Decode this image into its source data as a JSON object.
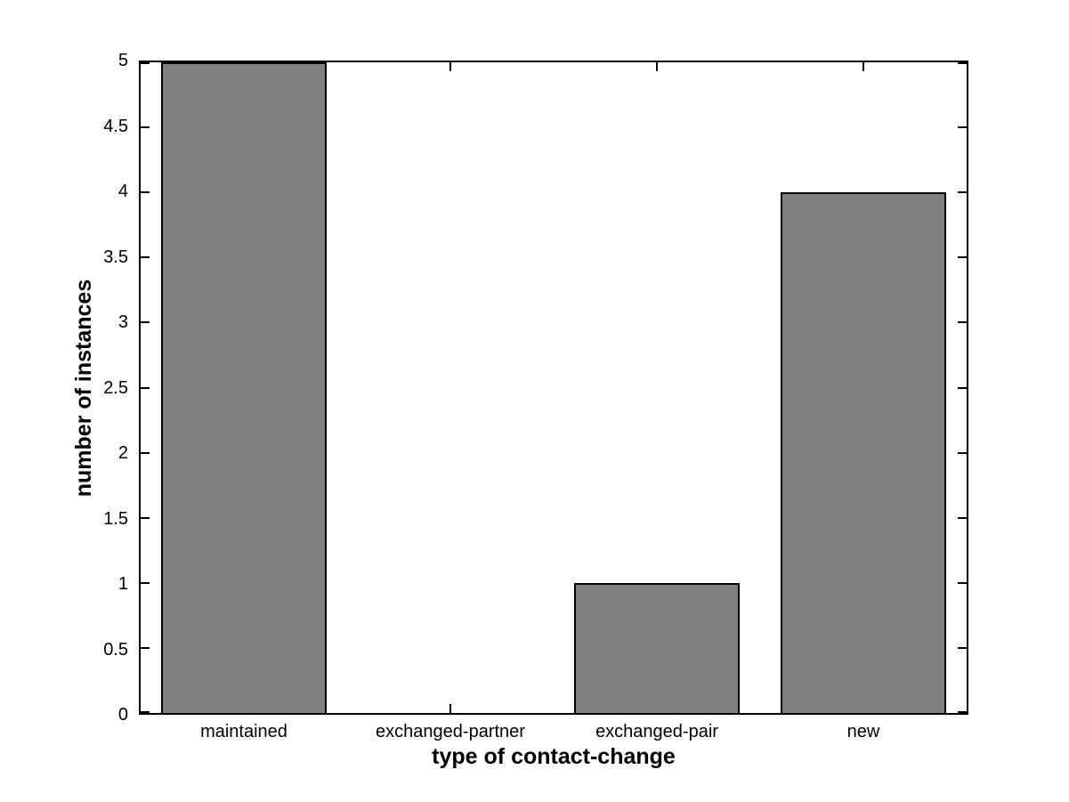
{
  "chart_data": {
    "type": "bar",
    "categories": [
      "maintained",
      "exchanged-partner",
      "exchanged-pair",
      "new"
    ],
    "values": [
      5,
      0,
      1,
      4
    ],
    "title": "",
    "xlabel": "type of contact-change",
    "ylabel": "number of instances",
    "ylim": [
      0,
      5
    ],
    "yticks": [
      0,
      0.5,
      1,
      1.5,
      2,
      2.5,
      3,
      3.5,
      4,
      4.5,
      5
    ],
    "bar_width_fraction": 0.8,
    "bar_color": "#808080",
    "bar_edge_color": "#000000",
    "axis_color": "#000000",
    "background_color": "#ffffff",
    "grid": "off",
    "legend": "none"
  }
}
